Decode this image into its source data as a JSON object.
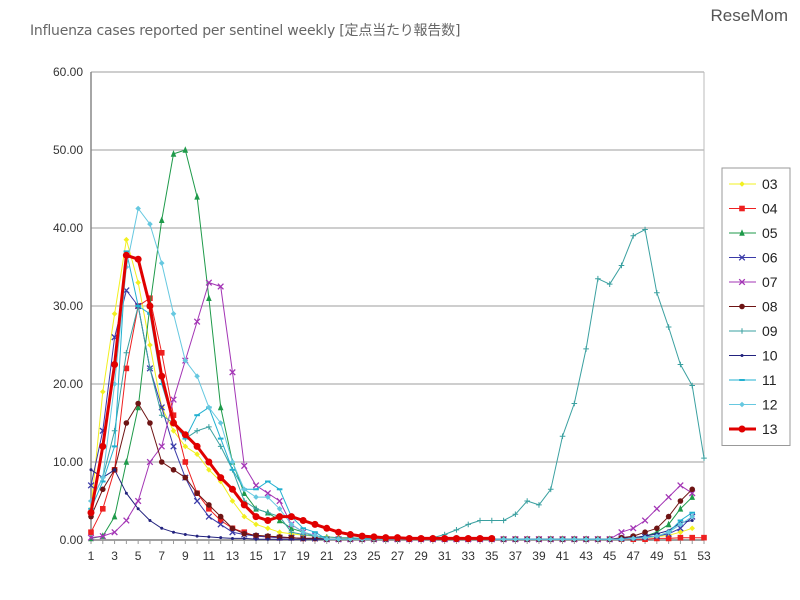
{
  "chart_data": {
    "type": "line",
    "title": "Influenza cases reported per sentinel weekly [定点当たり報告数]",
    "watermark": "ReseMom",
    "xlabel": "",
    "ylabel": "",
    "ylim": [
      0,
      60
    ],
    "yticks": [
      "0.00",
      "10.00",
      "20.00",
      "30.00",
      "40.00",
      "50.00",
      "60.00"
    ],
    "xlim": [
      1,
      53
    ],
    "xticks": [
      "1",
      "3",
      "5",
      "7",
      "9",
      "11",
      "13",
      "15",
      "17",
      "19",
      "21",
      "23",
      "25",
      "27",
      "29",
      "31",
      "33",
      "35",
      "37",
      "39",
      "41",
      "43",
      "45",
      "47",
      "49",
      "51",
      "53"
    ],
    "grid": true,
    "legend_position": "right",
    "series": [
      {
        "name": "03",
        "color": "#f2f020",
        "marker": "diamond",
        "width": 1,
        "values": [
          4,
          19,
          29,
          38.5,
          33,
          25,
          17,
          14,
          12,
          11,
          9,
          7.5,
          5,
          3,
          2,
          1.5,
          1,
          0.8,
          0.6,
          0.5,
          0.4,
          0.3,
          0.3,
          0.2,
          0.2,
          0.1,
          0.1,
          0.1,
          0.1,
          0.1,
          0.1,
          0.1,
          0.1,
          0.1,
          0.1,
          0.1,
          0.1,
          0.1,
          0.1,
          0.1,
          0.1,
          0.1,
          0.1,
          0.1,
          0.1,
          0.2,
          0.2,
          0.3,
          0.4,
          0.6,
          1,
          1.5,
          null
        ]
      },
      {
        "name": "04",
        "color": "#ee2020",
        "marker": "square",
        "width": 1,
        "values": [
          1,
          4,
          9,
          22,
          30,
          31,
          24,
          16,
          10,
          6,
          4,
          2.5,
          1.5,
          1,
          0.5,
          0.4,
          0.3,
          0.3,
          0.2,
          0.2,
          0.1,
          0.1,
          0.1,
          0.1,
          0.1,
          0.1,
          0.1,
          0.1,
          0.1,
          0.1,
          0.1,
          0.1,
          0.1,
          0.1,
          0.1,
          0.1,
          0.1,
          0.1,
          0.1,
          0.1,
          0.1,
          0.1,
          0.1,
          0.1,
          0.1,
          0.1,
          0.1,
          0.1,
          0.2,
          0.2,
          0.3,
          0.3,
          0.3
        ]
      },
      {
        "name": "05",
        "color": "#1e9a4a",
        "marker": "triangle",
        "width": 1,
        "values": [
          0.2,
          0.5,
          3,
          10,
          17,
          30,
          41,
          49.5,
          50,
          44,
          31,
          17,
          10,
          6,
          4,
          3.5,
          2.5,
          1.5,
          1,
          0.5,
          0.1,
          0.1,
          0.1,
          0.1,
          0.1,
          0.1,
          0.1,
          0.1,
          0.1,
          0.1,
          0.1,
          0.1,
          0.1,
          0.1,
          0.1,
          0.1,
          0.1,
          0.1,
          0.1,
          0.1,
          0.1,
          0.1,
          0.1,
          0.1,
          0.1,
          0.2,
          0.3,
          0.5,
          1,
          2,
          4,
          5.5,
          null
        ]
      },
      {
        "name": "06",
        "color": "#3a3aa8",
        "marker": "x",
        "width": 1,
        "values": [
          7,
          14,
          26,
          32,
          30,
          22,
          17,
          12,
          8,
          5,
          3,
          2,
          1,
          0.7,
          0.5,
          0.4,
          0.3,
          0.3,
          0.2,
          0.2,
          0.1,
          0.1,
          0.1,
          0.1,
          0.1,
          0.1,
          0.1,
          0.1,
          0.1,
          0.1,
          0.1,
          0.1,
          0.1,
          0.1,
          0.1,
          0.1,
          0.1,
          0.1,
          0.1,
          0.1,
          0.1,
          0.1,
          0.1,
          0.1,
          0.1,
          0.2,
          0.3,
          0.4,
          0.5,
          0.8,
          1.5,
          3,
          null
        ]
      },
      {
        "name": "07",
        "color": "#a335b5",
        "marker": "x",
        "width": 1,
        "values": [
          0.3,
          0.5,
          1,
          2.5,
          5,
          10,
          12,
          18,
          23,
          28,
          33,
          32.5,
          21.5,
          9.5,
          7,
          6,
          5,
          2,
          1,
          0.6,
          0.1,
          0.1,
          0.1,
          0.1,
          0.1,
          0.1,
          0.1,
          0.1,
          0.1,
          0.1,
          0.1,
          0.1,
          0.1,
          0.1,
          0.1,
          0.1,
          0.1,
          0.1,
          0.1,
          0.1,
          0.1,
          0.1,
          0.1,
          0.1,
          0.1,
          1,
          1.5,
          2.5,
          4,
          5.5,
          7,
          6,
          null
        ]
      },
      {
        "name": "08",
        "color": "#6e1414",
        "marker": "circle",
        "width": 1,
        "values": [
          3,
          6.5,
          9,
          15,
          17.5,
          15,
          10,
          9,
          8,
          6,
          4.5,
          3,
          1.5,
          0.8,
          0.6,
          0.5,
          0.4,
          0.3,
          0.2,
          0.2,
          0.1,
          0.1,
          0.1,
          0.1,
          0.1,
          0.1,
          0.1,
          0.1,
          0.1,
          0.1,
          0.1,
          0.1,
          0.1,
          0.1,
          0.1,
          0.1,
          0.1,
          0.1,
          0.1,
          0.1,
          0.1,
          0.1,
          0.1,
          0.1,
          0.1,
          0.3,
          0.5,
          1,
          1.5,
          3,
          5,
          6.5,
          null
        ]
      },
      {
        "name": "09",
        "color": "#3aa0a0",
        "marker": "plus",
        "width": 1,
        "values": [
          5,
          8,
          14,
          24,
          30,
          22,
          16,
          15,
          13,
          14,
          14.5,
          12,
          9,
          5,
          4,
          3.5,
          3,
          1,
          0.7,
          0.5,
          0.4,
          0.3,
          0.3,
          0.2,
          0.2,
          0.2,
          0.2,
          0.2,
          0.2,
          0.3,
          0.7,
          1.3,
          2,
          2.5,
          2.5,
          2.5,
          3.3,
          5,
          4.5,
          6.5,
          13.3,
          17.5,
          24.5,
          33.5,
          32.8,
          35.2,
          39,
          39.8,
          31.7,
          27.3,
          22.5,
          19.8,
          10.5
        ]
      },
      {
        "name": "10",
        "color": "#22227e",
        "marker": "dot",
        "width": 1,
        "values": [
          9,
          8,
          9,
          6,
          4,
          2.5,
          1.5,
          1,
          0.7,
          0.5,
          0.4,
          0.3,
          0.2,
          0.2,
          0.1,
          0.1,
          0.1,
          0.1,
          0.1,
          0.1,
          0.1,
          0.1,
          0.1,
          0.1,
          0.1,
          0.1,
          0.1,
          0.1,
          0.1,
          0.1,
          0.1,
          0.1,
          0.1,
          0.1,
          0.1,
          0.1,
          0.1,
          0.1,
          0.1,
          0.1,
          0.1,
          0.1,
          0.1,
          0.1,
          0.1,
          0.2,
          0.3,
          0.5,
          0.8,
          1.2,
          2.2,
          2.5,
          null
        ]
      },
      {
        "name": "11",
        "color": "#22b0d0",
        "marker": "dash",
        "width": 1,
        "values": [
          4,
          7.5,
          12,
          37,
          30,
          29,
          20,
          15,
          13,
          16,
          17,
          13,
          9,
          6.5,
          6.5,
          7.5,
          6.5,
          3,
          1.5,
          1,
          0.1,
          0.1,
          0.1,
          0.1,
          0.1,
          0.1,
          0.1,
          0.1,
          0.1,
          0.1,
          0.1,
          0.1,
          0.1,
          0.1,
          0.1,
          0.1,
          0.1,
          0.1,
          0.1,
          0.1,
          0.1,
          0.1,
          0.1,
          0.1,
          0.1,
          0.1,
          0.2,
          0.3,
          0.5,
          1,
          2.5,
          3.5,
          null
        ]
      },
      {
        "name": "12",
        "color": "#66c8e0",
        "marker": "diamond",
        "width": 1,
        "values": [
          5,
          8,
          20,
          35,
          42.5,
          40.5,
          35.5,
          29,
          23,
          21,
          17,
          15,
          10,
          6.5,
          5.5,
          5.5,
          4,
          2,
          1,
          0.6,
          0.1,
          0.1,
          0.1,
          0.1,
          0.1,
          0.1,
          0.1,
          0.1,
          0.1,
          0.1,
          0.1,
          0.1,
          0.1,
          0.1,
          0.1,
          0.1,
          0.1,
          0.1,
          0.1,
          0.1,
          0.1,
          0.1,
          0.1,
          0.1,
          0.1,
          0.1,
          0.2,
          0.3,
          0.5,
          1,
          2,
          3,
          null
        ]
      },
      {
        "name": "13",
        "color": "#e00000",
        "marker": "circle",
        "width": 3,
        "values": [
          3.5,
          12,
          22.5,
          36.5,
          36,
          30,
          21,
          15,
          13.5,
          12,
          10,
          8,
          6.5,
          4.5,
          3,
          2.5,
          3,
          3,
          2.5,
          2,
          1.5,
          1,
          0.7,
          0.5,
          0.4,
          0.3,
          0.3,
          0.2,
          0.2,
          0.2,
          0.2,
          0.2,
          0.2,
          0.2,
          0.2,
          null,
          null,
          null,
          null,
          null,
          null,
          null,
          null,
          null,
          null,
          null,
          null,
          null,
          null,
          null,
          null,
          null,
          null
        ]
      }
    ]
  }
}
